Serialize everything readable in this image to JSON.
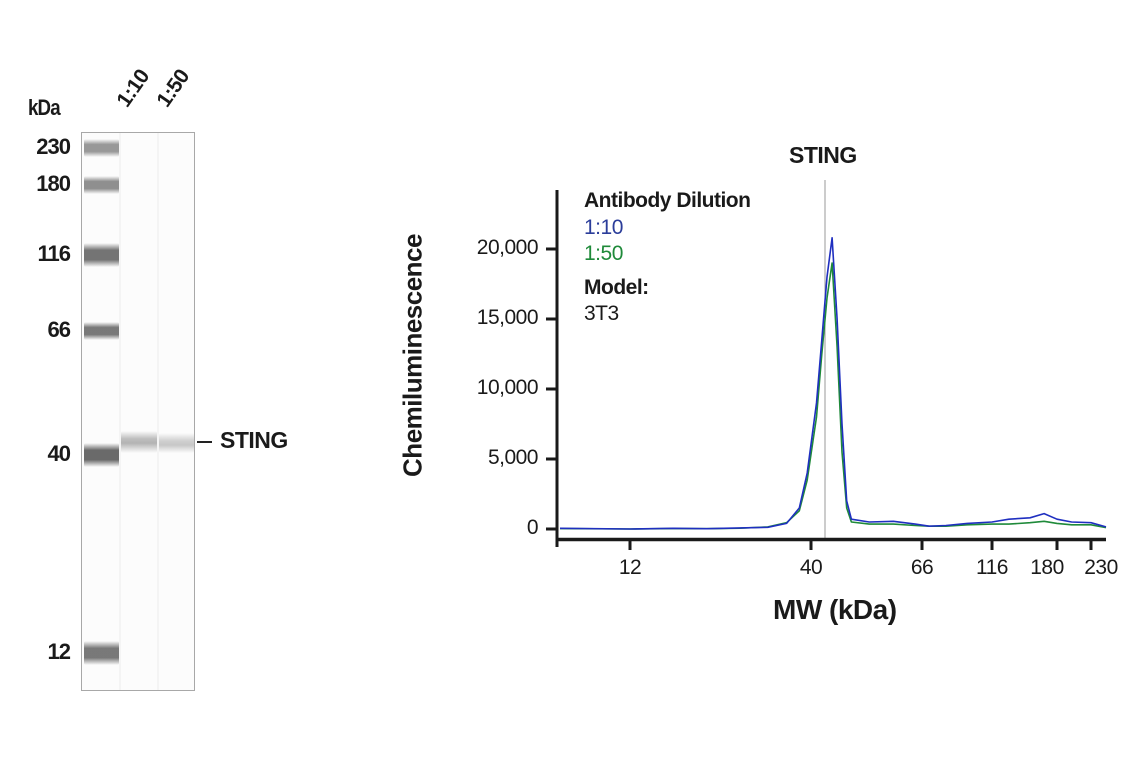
{
  "blot": {
    "unit_label": "kDa",
    "lanes": [
      "1:10",
      "1:50"
    ],
    "markers": [
      {
        "label": "230",
        "y": 147
      },
      {
        "label": "180",
        "y": 184
      },
      {
        "label": "116",
        "y": 254
      },
      {
        "label": "66",
        "y": 330
      },
      {
        "label": "40",
        "y": 454
      },
      {
        "label": "12",
        "y": 652
      }
    ],
    "target_label": "STING",
    "target_y": 441
  },
  "chart_data": {
    "type": "line",
    "title": "STING",
    "xlabel": "MW (kDa)",
    "ylabel": "Chemiluminescence",
    "x_ticks": [
      "12",
      "40",
      "66",
      "116",
      "180",
      "230"
    ],
    "y_ticks": [
      "0",
      "5,000",
      "10,000",
      "15,000",
      "20,000"
    ],
    "ylim": [
      0,
      24000
    ],
    "x_scale": "log-like (MW)",
    "reference_line_mw": 44,
    "legend": {
      "title": "Antibody Dilution",
      "entries": [
        {
          "label": "1:10",
          "color": "#2b3d9a"
        },
        {
          "label": "1:50",
          "color": "#1f8a3a"
        }
      ],
      "model_title": "Model:",
      "model_value": "3T3"
    },
    "series": [
      {
        "name": "1:10",
        "color": "#1f2fc0",
        "points": [
          [
            9,
            50
          ],
          [
            12,
            0
          ],
          [
            16,
            50
          ],
          [
            20,
            20
          ],
          [
            25,
            80
          ],
          [
            30,
            120
          ],
          [
            34,
            400
          ],
          [
            37,
            1500
          ],
          [
            39,
            4000
          ],
          [
            41,
            9000
          ],
          [
            42,
            13500
          ],
          [
            43,
            18000
          ],
          [
            44,
            20800
          ],
          [
            45,
            15000
          ],
          [
            46,
            7500
          ],
          [
            47,
            2000
          ],
          [
            48,
            700
          ],
          [
            52,
            500
          ],
          [
            58,
            550
          ],
          [
            64,
            350
          ],
          [
            70,
            200
          ],
          [
            80,
            250
          ],
          [
            95,
            400
          ],
          [
            116,
            500
          ],
          [
            130,
            700
          ],
          [
            150,
            800
          ],
          [
            165,
            1100
          ],
          [
            180,
            700
          ],
          [
            200,
            500
          ],
          [
            230,
            450
          ],
          [
            260,
            150
          ]
        ]
      },
      {
        "name": "1:50",
        "color": "#1f8a3a",
        "points": [
          [
            9,
            30
          ],
          [
            12,
            0
          ],
          [
            16,
            30
          ],
          [
            20,
            20
          ],
          [
            25,
            60
          ],
          [
            30,
            150
          ],
          [
            34,
            450
          ],
          [
            37,
            1300
          ],
          [
            39,
            3500
          ],
          [
            41,
            8000
          ],
          [
            42,
            12500
          ],
          [
            43,
            16500
          ],
          [
            44,
            19000
          ],
          [
            45,
            13000
          ],
          [
            46,
            5500
          ],
          [
            47,
            1500
          ],
          [
            48,
            500
          ],
          [
            52,
            350
          ],
          [
            58,
            350
          ],
          [
            64,
            250
          ],
          [
            70,
            200
          ],
          [
            80,
            200
          ],
          [
            95,
            300
          ],
          [
            116,
            350
          ],
          [
            130,
            350
          ],
          [
            150,
            450
          ],
          [
            165,
            550
          ],
          [
            180,
            400
          ],
          [
            200,
            300
          ],
          [
            230,
            300
          ],
          [
            260,
            100
          ]
        ]
      }
    ]
  }
}
